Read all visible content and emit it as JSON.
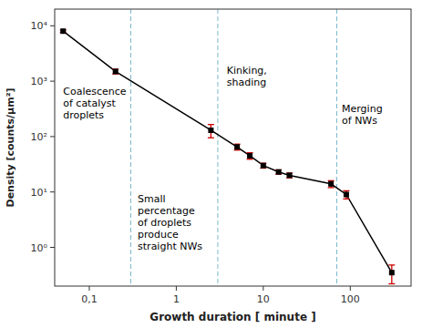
{
  "chart_data": {
    "type": "line",
    "x": [
      0.05,
      0.2,
      2.5,
      5,
      7,
      10,
      15,
      20,
      60,
      90,
      300
    ],
    "series": [
      {
        "values": [
          8000,
          1500,
          130,
          65,
          45,
          30,
          23,
          20,
          14,
          9,
          0.35
        ],
        "color": "#000000",
        "marker": "square",
        "errors": {
          "low": [
            400,
            150,
            35,
            8,
            6,
            3,
            2,
            2,
            2,
            1.5,
            0.13
          ],
          "high": [
            400,
            150,
            35,
            8,
            6,
            3,
            2,
            2,
            2,
            1.5,
            0.13
          ],
          "color": "#cc0000"
        }
      }
    ],
    "vlines": {
      "values": [
        0.3,
        3.0,
        70.0
      ],
      "color": "#7ab8cc",
      "line_style": "dashed"
    },
    "x_label": "Growth duration [ minute ]",
    "y_label": "Density [counts/μm²]",
    "log": true,
    "grid": false,
    "xlim": [
      0.04,
      500
    ],
    "ylim": [
      0.2,
      20000
    ],
    "xticks": [
      {
        "value": 0.1,
        "label": "0,1"
      },
      1,
      10,
      100
    ],
    "yticks": [
      {
        "value": 1,
        "label": "10⁰"
      },
      {
        "value": 10,
        "label": "10¹"
      },
      {
        "value": 100,
        "label": "10²"
      },
      {
        "value": 1000,
        "label": "10³"
      },
      {
        "value": 10000,
        "label": "10⁴"
      }
    ],
    "annotations": [
      {
        "text": "Coalescence\nof catalyst\ndroplets",
        "x": 0.05,
        "y": 400
      },
      {
        "text": "Small\npercentage\nof droplets\nproduce\nstraight NWs",
        "x": 0.36,
        "y": 2.8
      },
      {
        "text": "Kinking,\nshading",
        "x": 3.8,
        "y": 1200
      },
      {
        "text": "Merging\nof NWs",
        "x": 80,
        "y": 250
      }
    ]
  }
}
